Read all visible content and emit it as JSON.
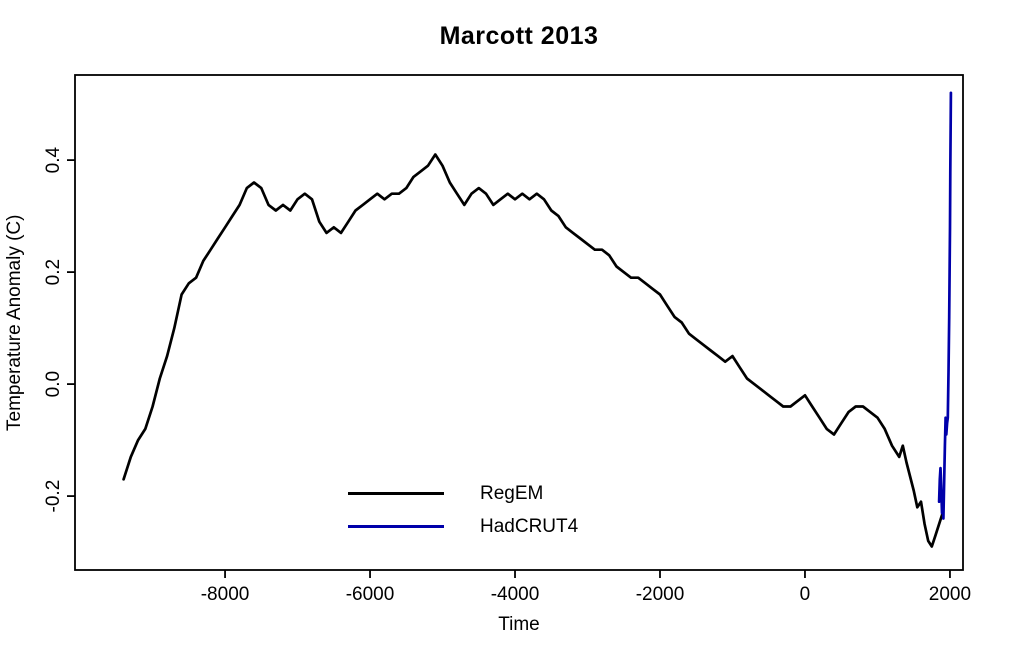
{
  "chart_data": {
    "type": "line",
    "title": "Marcott 2013",
    "xlabel": "Time",
    "ylabel": "Temperature Anomaly (C)",
    "xlim": [
      -10070,
      2180
    ],
    "ylim": [
      -0.332,
      0.552
    ],
    "xticks": [
      -8000,
      -6000,
      -4000,
      -2000,
      0,
      2000
    ],
    "yticks": [
      -0.2,
      0.0,
      0.2,
      0.4
    ],
    "grid": false,
    "legend_position": "inside-bottom-center",
    "frame_color": "#000000",
    "series": [
      {
        "name": "RegEM",
        "color": "#000000",
        "points": [
          [
            -9400,
            -0.17
          ],
          [
            -9300,
            -0.13
          ],
          [
            -9200,
            -0.1
          ],
          [
            -9100,
            -0.08
          ],
          [
            -9000,
            -0.04
          ],
          [
            -8900,
            0.01
          ],
          [
            -8800,
            0.05
          ],
          [
            -8700,
            0.1
          ],
          [
            -8600,
            0.16
          ],
          [
            -8500,
            0.18
          ],
          [
            -8400,
            0.19
          ],
          [
            -8300,
            0.22
          ],
          [
            -8200,
            0.24
          ],
          [
            -8100,
            0.26
          ],
          [
            -8000,
            0.28
          ],
          [
            -7900,
            0.3
          ],
          [
            -7800,
            0.32
          ],
          [
            -7700,
            0.35
          ],
          [
            -7600,
            0.36
          ],
          [
            -7500,
            0.35
          ],
          [
            -7400,
            0.32
          ],
          [
            -7300,
            0.31
          ],
          [
            -7200,
            0.32
          ],
          [
            -7100,
            0.31
          ],
          [
            -7000,
            0.33
          ],
          [
            -6900,
            0.34
          ],
          [
            -6800,
            0.33
          ],
          [
            -6700,
            0.29
          ],
          [
            -6600,
            0.27
          ],
          [
            -6500,
            0.28
          ],
          [
            -6400,
            0.27
          ],
          [
            -6300,
            0.29
          ],
          [
            -6200,
            0.31
          ],
          [
            -6100,
            0.32
          ],
          [
            -6000,
            0.33
          ],
          [
            -5900,
            0.34
          ],
          [
            -5800,
            0.33
          ],
          [
            -5700,
            0.34
          ],
          [
            -5600,
            0.34
          ],
          [
            -5500,
            0.35
          ],
          [
            -5400,
            0.37
          ],
          [
            -5300,
            0.38
          ],
          [
            -5200,
            0.39
          ],
          [
            -5100,
            0.41
          ],
          [
            -5000,
            0.39
          ],
          [
            -4900,
            0.36
          ],
          [
            -4800,
            0.34
          ],
          [
            -4700,
            0.32
          ],
          [
            -4600,
            0.34
          ],
          [
            -4500,
            0.35
          ],
          [
            -4400,
            0.34
          ],
          [
            -4300,
            0.32
          ],
          [
            -4200,
            0.33
          ],
          [
            -4100,
            0.34
          ],
          [
            -4000,
            0.33
          ],
          [
            -3900,
            0.34
          ],
          [
            -3800,
            0.33
          ],
          [
            -3700,
            0.34
          ],
          [
            -3600,
            0.33
          ],
          [
            -3500,
            0.31
          ],
          [
            -3400,
            0.3
          ],
          [
            -3300,
            0.28
          ],
          [
            -3200,
            0.27
          ],
          [
            -3100,
            0.26
          ],
          [
            -3000,
            0.25
          ],
          [
            -2900,
            0.24
          ],
          [
            -2800,
            0.24
          ],
          [
            -2700,
            0.23
          ],
          [
            -2600,
            0.21
          ],
          [
            -2500,
            0.2
          ],
          [
            -2400,
            0.19
          ],
          [
            -2300,
            0.19
          ],
          [
            -2200,
            0.18
          ],
          [
            -2100,
            0.17
          ],
          [
            -2000,
            0.16
          ],
          [
            -1900,
            0.14
          ],
          [
            -1800,
            0.12
          ],
          [
            -1700,
            0.11
          ],
          [
            -1600,
            0.09
          ],
          [
            -1500,
            0.08
          ],
          [
            -1400,
            0.07
          ],
          [
            -1300,
            0.06
          ],
          [
            -1200,
            0.05
          ],
          [
            -1100,
            0.04
          ],
          [
            -1000,
            0.05
          ],
          [
            -900,
            0.03
          ],
          [
            -800,
            0.01
          ],
          [
            -700,
            0
          ],
          [
            -600,
            -0.01
          ],
          [
            -500,
            -0.02
          ],
          [
            -400,
            -0.03
          ],
          [
            -300,
            -0.04
          ],
          [
            -200,
            -0.04
          ],
          [
            -100,
            -0.03
          ],
          [
            0,
            -0.02
          ],
          [
            100,
            -0.04
          ],
          [
            200,
            -0.06
          ],
          [
            300,
            -0.08
          ],
          [
            400,
            -0.09
          ],
          [
            500,
            -0.07
          ],
          [
            600,
            -0.05
          ],
          [
            700,
            -0.04
          ],
          [
            800,
            -0.04
          ],
          [
            900,
            -0.05
          ],
          [
            1000,
            -0.06
          ],
          [
            1100,
            -0.08
          ],
          [
            1200,
            -0.11
          ],
          [
            1300,
            -0.13
          ],
          [
            1350,
            -0.11
          ],
          [
            1400,
            -0.14
          ],
          [
            1500,
            -0.19
          ],
          [
            1550,
            -0.22
          ],
          [
            1600,
            -0.21
          ],
          [
            1650,
            -0.25
          ],
          [
            1700,
            -0.28
          ],
          [
            1750,
            -0.29
          ],
          [
            1800,
            -0.27
          ],
          [
            1850,
            -0.25
          ],
          [
            1900,
            -0.23
          ]
        ]
      },
      {
        "name": "HadCRUT4",
        "color": "#0000AA",
        "points": [
          [
            1850,
            -0.21
          ],
          [
            1860,
            -0.17
          ],
          [
            1870,
            -0.15
          ],
          [
            1880,
            -0.19
          ],
          [
            1890,
            -0.23
          ],
          [
            1900,
            -0.21
          ],
          [
            1910,
            -0.24
          ],
          [
            1920,
            -0.17
          ],
          [
            1930,
            -0.11
          ],
          [
            1940,
            -0.06
          ],
          [
            1950,
            -0.09
          ],
          [
            1960,
            -0.07
          ],
          [
            1970,
            -0.06
          ],
          [
            1980,
            0.02
          ],
          [
            1990,
            0.12
          ],
          [
            1995,
            0.2
          ],
          [
            2000,
            0.28
          ],
          [
            2005,
            0.38
          ],
          [
            2010,
            0.47
          ],
          [
            2013,
            0.52
          ]
        ]
      }
    ]
  }
}
